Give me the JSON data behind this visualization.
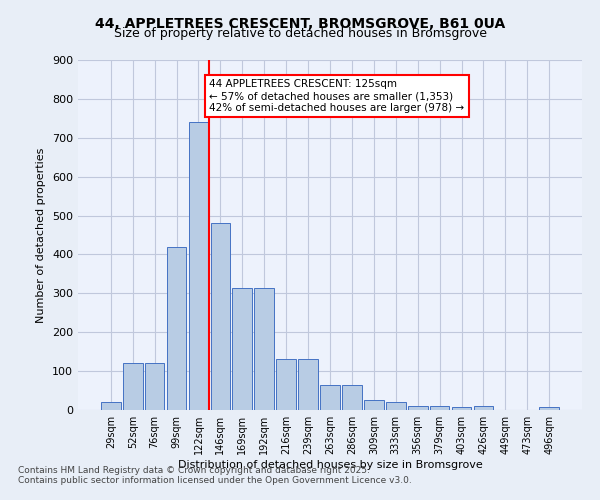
{
  "title1": "44, APPLETREES CRESCENT, BROMSGROVE, B61 0UA",
  "title2": "Size of property relative to detached houses in Bromsgrove",
  "xlabel": "Distribution of detached houses by size in Bromsgrove",
  "ylabel": "Number of detached properties",
  "categories": [
    "29sqm",
    "52sqm",
    "76sqm",
    "99sqm",
    "122sqm",
    "146sqm",
    "169sqm",
    "192sqm",
    "216sqm",
    "239sqm",
    "263sqm",
    "286sqm",
    "309sqm",
    "333sqm",
    "356sqm",
    "379sqm",
    "403sqm",
    "426sqm",
    "449sqm",
    "473sqm",
    "496sqm"
  ],
  "values": [
    20,
    120,
    120,
    420,
    740,
    480,
    315,
    315,
    130,
    130,
    65,
    65,
    25,
    20,
    10,
    10,
    8,
    10,
    0,
    0,
    8
  ],
  "bar_color": "#b8cce4",
  "bar_edge_color": "#4472c4",
  "vline_x": 4,
  "vline_color": "red",
  "annotation_text": "44 APPLETREES CRESCENT: 125sqm\n← 57% of detached houses are smaller (1,353)\n42% of semi-detached houses are larger (978) →",
  "annotation_box_color": "white",
  "annotation_box_edge": "red",
  "ylim": [
    0,
    900
  ],
  "yticks": [
    0,
    100,
    200,
    300,
    400,
    500,
    600,
    700,
    800,
    900
  ],
  "footer": "Contains HM Land Registry data © Crown copyright and database right 2025.\nContains public sector information licensed under the Open Government Licence v3.0.",
  "bg_color": "#e8eef7",
  "plot_bg_color": "#edf2fc",
  "grid_color": "#c0c8dc"
}
